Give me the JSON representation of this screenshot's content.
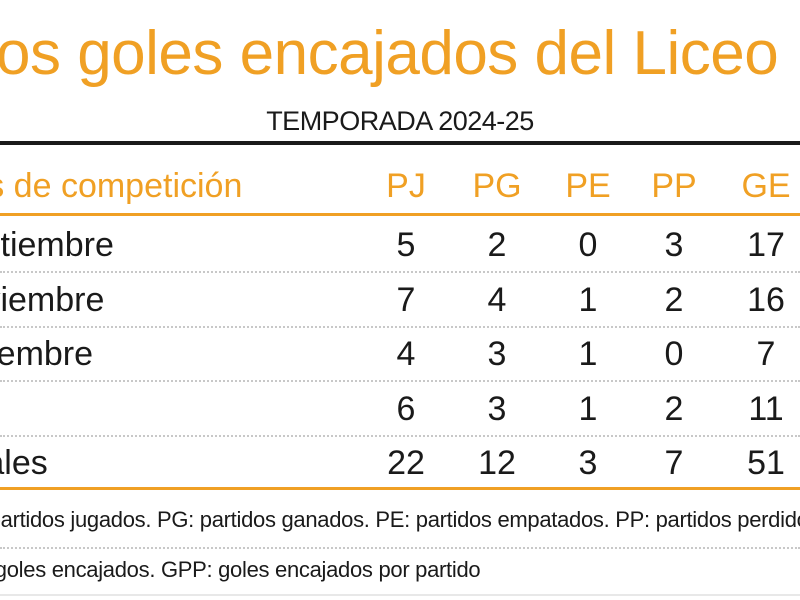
{
  "title": "Los goles encajados del Liceo",
  "subtitle": "TEMPORADA 2024-25",
  "colors": {
    "accent": "#f0a024",
    "text": "#1a1a1a",
    "divider": "#c8c8c8"
  },
  "table": {
    "headers": {
      "label": "Mes de competición",
      "pj": "PJ",
      "pg": "PG",
      "pe": "PE",
      "pp": "PP",
      "ge": "GE"
    },
    "rows": [
      {
        "label": "Septiembre",
        "pj": "5",
        "pg": "2",
        "pe": "0",
        "pp": "3",
        "ge": "17"
      },
      {
        "label": "Noviembre",
        "pj": "7",
        "pg": "4",
        "pe": "1",
        "pp": "2",
        "ge": "16"
      },
      {
        "label": "Diciembre",
        "pj": "4",
        "pg": "3",
        "pe": "1",
        "pp": "0",
        "ge": "7"
      },
      {
        "label": "",
        "pj": "6",
        "pg": "3",
        "pe": "1",
        "pp": "2",
        "ge": "11"
      },
      {
        "label": "Totales",
        "pj": "22",
        "pg": "12",
        "pe": "3",
        "pp": "7",
        "ge": "51"
      }
    ]
  },
  "notes": {
    "line1": "PJ: partidos jugados. PG: partidos ganados. PE: partidos empatados. PP: partidos perdidos.",
    "line2": "GE: goles encajados. GPP: goles encajados por partido"
  }
}
